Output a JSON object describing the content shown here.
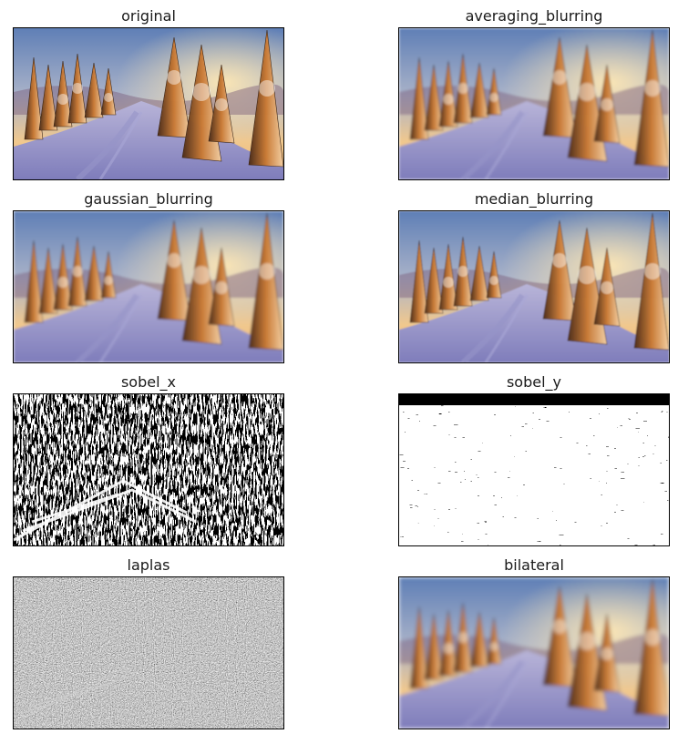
{
  "figure": {
    "panels": [
      {
        "title": "original",
        "kind": "photo"
      },
      {
        "title": "averaging_blurring",
        "kind": "photo-blur"
      },
      {
        "title": "gaussian_blurring",
        "kind": "photo-blur"
      },
      {
        "title": "median_blurring",
        "kind": "photo-blur"
      },
      {
        "title": "sobel_x",
        "kind": "edges-binary"
      },
      {
        "title": "sobel_y",
        "kind": "edges-binary"
      },
      {
        "title": "laplas",
        "kind": "edges-gray"
      },
      {
        "title": "bilateral",
        "kind": "photo-blur"
      }
    ]
  }
}
